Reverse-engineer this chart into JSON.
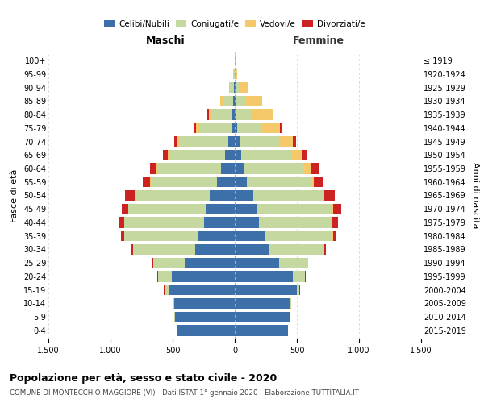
{
  "age_groups": [
    "0-4",
    "5-9",
    "10-14",
    "15-19",
    "20-24",
    "25-29",
    "30-34",
    "35-39",
    "40-44",
    "45-49",
    "50-54",
    "55-59",
    "60-64",
    "65-69",
    "70-74",
    "75-79",
    "80-84",
    "85-89",
    "90-94",
    "95-99",
    "100+"
  ],
  "birth_years": [
    "2015-2019",
    "2010-2014",
    "2005-2009",
    "2000-2004",
    "1995-1999",
    "1990-1994",
    "1985-1989",
    "1980-1984",
    "1975-1979",
    "1970-1974",
    "1965-1969",
    "1960-1964",
    "1955-1959",
    "1950-1954",
    "1945-1949",
    "1940-1944",
    "1935-1939",
    "1930-1934",
    "1925-1929",
    "1920-1924",
    "≤ 1919"
  ],
  "male_celibi": [
    460,
    480,
    485,
    535,
    505,
    405,
    315,
    295,
    245,
    235,
    200,
    145,
    110,
    75,
    50,
    28,
    18,
    12,
    6,
    3,
    2
  ],
  "male_coniugati": [
    3,
    6,
    12,
    32,
    112,
    252,
    502,
    592,
    642,
    622,
    602,
    532,
    512,
    452,
    392,
    258,
    162,
    82,
    32,
    6,
    1
  ],
  "male_vedovi": [
    0,
    0,
    0,
    0,
    0,
    1,
    1,
    2,
    2,
    2,
    3,
    5,
    8,
    10,
    20,
    25,
    30,
    20,
    8,
    2,
    0
  ],
  "male_divorziati": [
    0,
    0,
    0,
    2,
    4,
    8,
    18,
    28,
    38,
    52,
    78,
    58,
    52,
    38,
    28,
    18,
    10,
    5,
    2,
    0,
    0
  ],
  "fem_nubili": [
    428,
    448,
    448,
    498,
    468,
    358,
    278,
    248,
    198,
    178,
    148,
    98,
    78,
    55,
    38,
    18,
    14,
    8,
    5,
    2,
    1
  ],
  "fem_coniugate": [
    2,
    3,
    8,
    24,
    98,
    228,
    438,
    538,
    578,
    598,
    558,
    510,
    480,
    400,
    320,
    200,
    120,
    80,
    40,
    10,
    2
  ],
  "fem_vedove": [
    0,
    0,
    0,
    0,
    1,
    2,
    4,
    6,
    8,
    14,
    18,
    28,
    58,
    88,
    108,
    148,
    170,
    130,
    60,
    10,
    1
  ],
  "fem_divorziate": [
    0,
    0,
    0,
    1,
    2,
    6,
    14,
    28,
    48,
    68,
    78,
    78,
    58,
    38,
    28,
    18,
    10,
    5,
    2,
    0,
    0
  ],
  "colors": {
    "celibi": "#3d6fa8",
    "coniugati": "#c5d8a0",
    "vedovi": "#f5c96a",
    "divorziati": "#cc2222"
  },
  "xlim": 1500,
  "title": "Popolazione per età, sesso e stato civile - 2020",
  "subtitle": "COMUNE DI MONTECCHIO MAGGIORE (VI) - Dati ISTAT 1° gennaio 2020 - Elaborazione TUTTITALIA.IT",
  "ylabel_left": "Fasce di età",
  "ylabel_right": "Anni di nascita",
  "xlabel_left": "Maschi",
  "xlabel_right": "Femmine"
}
